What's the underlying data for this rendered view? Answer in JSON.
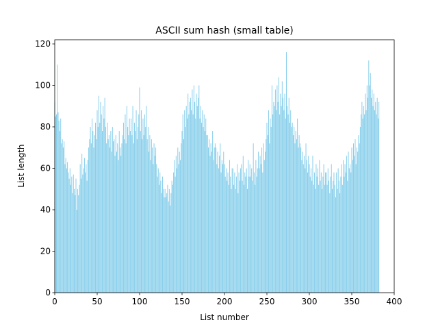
{
  "chart_data": {
    "type": "bar",
    "title": "ASCII sum hash (small table)",
    "x_label": "List number",
    "y_label": "List length",
    "color": "#87ceeb",
    "x": [
      0,
      1,
      2,
      3,
      4,
      5,
      6,
      7,
      8,
      9,
      10,
      11,
      12,
      13,
      14,
      15,
      16,
      17,
      18,
      19,
      20,
      21,
      22,
      23,
      24,
      25,
      26,
      27,
      28,
      29,
      30,
      31,
      32,
      33,
      34,
      35,
      36,
      37,
      38,
      39,
      40,
      41,
      42,
      43,
      44,
      45,
      46,
      47,
      48,
      49,
      50,
      51,
      52,
      53,
      54,
      55,
      56,
      57,
      58,
      59,
      60,
      61,
      62,
      63,
      64,
      65,
      66,
      67,
      68,
      69,
      70,
      71,
      72,
      73,
      74,
      75,
      76,
      77,
      78,
      79,
      80,
      81,
      82,
      83,
      84,
      85,
      86,
      87,
      88,
      89,
      90,
      91,
      92,
      93,
      94,
      95,
      96,
      97,
      98,
      99,
      100,
      101,
      102,
      103,
      104,
      105,
      106,
      107,
      108,
      109,
      110,
      111,
      112,
      113,
      114,
      115,
      116,
      117,
      118,
      119,
      120,
      121,
      122,
      123,
      124,
      125,
      126,
      127,
      128,
      129,
      130,
      131,
      132,
      133,
      134,
      135,
      136,
      137,
      138,
      139,
      140,
      141,
      142,
      143,
      144,
      145,
      146,
      147,
      148,
      149,
      150,
      151,
      152,
      153,
      154,
      155,
      156,
      157,
      158,
      159,
      160,
      161,
      162,
      163,
      164,
      165,
      166,
      167,
      168,
      169,
      170,
      171,
      172,
      173,
      174,
      175,
      176,
      177,
      178,
      179,
      180,
      181,
      182,
      183,
      184,
      185,
      186,
      187,
      188,
      189,
      190,
      191,
      192,
      193,
      194,
      195,
      196,
      197,
      198,
      199,
      200,
      201,
      202,
      203,
      204,
      205,
      206,
      207,
      208,
      209,
      210,
      211,
      212,
      213,
      214,
      215,
      216,
      217,
      218,
      219,
      220,
      221,
      222,
      223,
      224,
      225,
      226,
      227,
      228,
      229,
      230,
      231,
      232,
      233,
      234,
      235,
      236,
      237,
      238,
      239,
      240,
      241,
      242,
      243,
      244,
      245,
      246,
      247,
      248,
      249,
      250,
      251,
      252,
      253,
      254,
      255,
      256,
      257,
      258,
      259,
      260,
      261,
      262,
      263,
      264,
      265,
      266,
      267,
      268,
      269,
      270,
      271,
      272,
      273,
      274,
      275,
      276,
      277,
      278,
      279,
      280,
      281,
      282,
      283,
      284,
      285,
      286,
      287,
      288,
      289,
      290,
      291,
      292,
      293,
      294,
      295,
      296,
      297,
      298,
      299,
      300,
      301,
      302,
      303,
      304,
      305,
      306,
      307,
      308,
      309,
      310,
      311,
      312,
      313,
      314,
      315,
      316,
      317,
      318,
      319,
      320,
      321,
      322,
      323,
      324,
      325,
      326,
      327,
      328,
      329,
      330,
      331,
      332,
      333,
      334,
      335,
      336,
      337,
      338,
      339,
      340,
      341,
      342,
      343,
      344,
      345,
      346,
      347,
      348,
      349,
      350,
      351,
      352,
      353,
      354,
      355,
      356,
      357,
      358,
      359,
      360,
      361,
      362,
      363,
      364,
      365,
      366,
      367,
      368,
      369,
      370,
      371,
      372,
      373,
      374,
      375,
      376,
      377,
      378,
      379,
      380,
      381,
      382
    ],
    "values": [
      92,
      85,
      86,
      110,
      87,
      83,
      78,
      84,
      72,
      74,
      70,
      73,
      62,
      65,
      60,
      63,
      58,
      55,
      60,
      52,
      56,
      48,
      57,
      50,
      47,
      55,
      40,
      50,
      47,
      52,
      62,
      55,
      67,
      57,
      60,
      65,
      58,
      62,
      54,
      64,
      70,
      74,
      80,
      72,
      84,
      78,
      70,
      76,
      82,
      74,
      88,
      80,
      95,
      82,
      92,
      86,
      78,
      90,
      84,
      94,
      80,
      72,
      82,
      74,
      76,
      70,
      78,
      68,
      80,
      73,
      74,
      66,
      76,
      68,
      72,
      64,
      78,
      70,
      66,
      72,
      76,
      82,
      74,
      86,
      72,
      90,
      80,
      76,
      84,
      78,
      84,
      76,
      90,
      72,
      82,
      78,
      88,
      74,
      80,
      86,
      99,
      78,
      88,
      74,
      84,
      76,
      86,
      80,
      90,
      74,
      80,
      68,
      76,
      64,
      74,
      70,
      62,
      72,
      66,
      70,
      62,
      56,
      60,
      52,
      58,
      54,
      48,
      56,
      50,
      46,
      50,
      46,
      48,
      52,
      44,
      50,
      42,
      48,
      54,
      52,
      58,
      64,
      56,
      66,
      60,
      70,
      62,
      68,
      64,
      72,
      78,
      86,
      74,
      88,
      80,
      90,
      84,
      96,
      86,
      92,
      94,
      88,
      98,
      86,
      100,
      92,
      84,
      96,
      90,
      94,
      100,
      84,
      90,
      82,
      88,
      80,
      86,
      78,
      84,
      76,
      76,
      70,
      74,
      66,
      72,
      68,
      78,
      64,
      70,
      72,
      70,
      62,
      68,
      60,
      66,
      72,
      58,
      64,
      62,
      68,
      62,
      56,
      60,
      54,
      58,
      52,
      64,
      56,
      50,
      60,
      60,
      52,
      58,
      50,
      56,
      62,
      48,
      58,
      54,
      60,
      62,
      54,
      66,
      52,
      58,
      56,
      60,
      50,
      64,
      56,
      62,
      56,
      60,
      54,
      72,
      58,
      52,
      64,
      56,
      60,
      68,
      60,
      66,
      62,
      70,
      58,
      72,
      64,
      68,
      74,
      82,
      76,
      88,
      72,
      84,
      80,
      100,
      86,
      92,
      90,
      98,
      88,
      100,
      92,
      104,
      86,
      96,
      90,
      102,
      94,
      88,
      96,
      84,
      116,
      90,
      86,
      94,
      82,
      88,
      80,
      82,
      76,
      80,
      72,
      78,
      74,
      84,
      70,
      76,
      72,
      70,
      64,
      68,
      62,
      66,
      60,
      72,
      64,
      58,
      66,
      62,
      56,
      60,
      54,
      66,
      52,
      58,
      50,
      62,
      56,
      60,
      52,
      64,
      54,
      58,
      50,
      56,
      62,
      52,
      58,
      58,
      52,
      60,
      54,
      48,
      56,
      62,
      50,
      54,
      58,
      52,
      46,
      58,
      50,
      60,
      54,
      48,
      56,
      62,
      52,
      64,
      56,
      62,
      58,
      66,
      54,
      68,
      60,
      62,
      58,
      70,
      64,
      72,
      66,
      74,
      62,
      70,
      68,
      76,
      72,
      80,
      86,
      92,
      84,
      90,
      86,
      96,
      88,
      100,
      94,
      112,
      100,
      106,
      94,
      98,
      90,
      96,
      88,
      92,
      86,
      94,
      84,
      92
    ],
    "xlim": [
      0,
      400
    ],
    "xticks": [
      0,
      50,
      100,
      150,
      200,
      250,
      300,
      350,
      400
    ],
    "ylim": [
      0,
      122
    ],
    "yticks": [
      0,
      20,
      40,
      60,
      80,
      100,
      120
    ]
  }
}
